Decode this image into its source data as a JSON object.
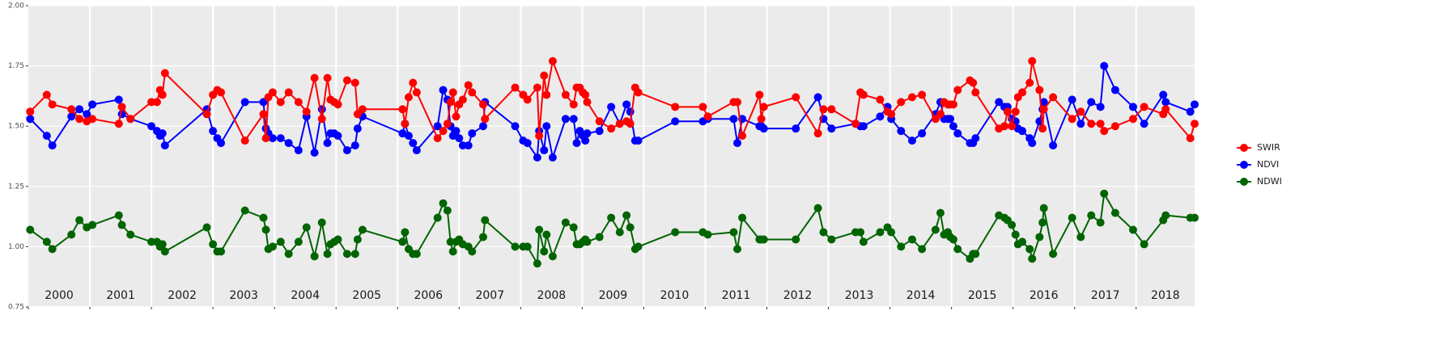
{
  "chart_data": {
    "type": "line",
    "x": [
      2000.03,
      2000.3,
      2000.39,
      2000.7,
      2000.83,
      2000.95,
      2001.04,
      2001.47,
      2001.52,
      2001.66,
      2002.0,
      2002.09,
      2002.14,
      2002.18,
      2002.22,
      2002.9,
      2003.0,
      2003.07,
      2003.13,
      2003.52,
      2003.82,
      2003.86,
      2003.9,
      2003.97,
      2004.1,
      2004.23,
      2004.39,
      2004.52,
      2004.65,
      2004.77,
      2004.86,
      2004.91,
      2004.97,
      2005.03,
      2005.18,
      2005.31,
      2005.35,
      2005.43,
      2006.08,
      2006.12,
      2006.18,
      2006.25,
      2006.31,
      2006.65,
      2006.74,
      2006.81,
      2006.86,
      2006.9,
      2006.95,
      2007.0,
      2007.06,
      2007.15,
      2007.21,
      2007.39,
      2007.42,
      2007.91,
      2008.04,
      2008.11,
      2008.27,
      2008.3,
      2008.38,
      2008.42,
      2008.52,
      2008.73,
      2008.86,
      2008.91,
      2008.96,
      2009.01,
      2009.05,
      2009.08,
      2009.28,
      2009.47,
      2009.61,
      2009.72,
      2009.78,
      2009.86,
      2009.91,
      2010.51,
      2010.96,
      2011.04,
      2011.46,
      2011.52,
      2011.6,
      2011.88,
      2011.91,
      2011.95,
      2012.47,
      2012.83,
      2012.92,
      2013.05,
      2013.44,
      2013.52,
      2013.57,
      2013.84,
      2013.96,
      2014.02,
      2014.18,
      2014.36,
      2014.52,
      2014.74,
      2014.82,
      2014.88,
      2014.94,
      2014.98,
      2015.03,
      2015.1,
      2015.3,
      2015.35,
      2015.39,
      2015.77,
      2015.86,
      2015.91,
      2015.98,
      2016.04,
      2016.08,
      2016.15,
      2016.27,
      2016.31,
      2016.43,
      2016.48,
      2016.5,
      2016.65,
      2016.96,
      2017.1,
      2017.27,
      2017.42,
      2017.48,
      2017.66,
      2017.95,
      2018.13,
      2018.44,
      2018.48,
      2018.88,
      2018.95
    ],
    "series": [
      {
        "name": "SWIR",
        "color": "#ff0000",
        "values": [
          1.56,
          1.63,
          1.59,
          1.57,
          1.53,
          1.52,
          1.53,
          1.51,
          1.58,
          1.53,
          1.6,
          1.6,
          1.65,
          1.63,
          1.72,
          1.55,
          1.63,
          1.65,
          1.64,
          1.44,
          1.55,
          1.45,
          1.62,
          1.64,
          1.6,
          1.64,
          1.6,
          1.56,
          1.7,
          1.53,
          1.7,
          1.61,
          1.6,
          1.59,
          1.69,
          1.68,
          1.55,
          1.57,
          1.57,
          1.51,
          1.62,
          1.68,
          1.64,
          1.45,
          1.48,
          1.51,
          1.6,
          1.64,
          1.54,
          1.59,
          1.61,
          1.67,
          1.64,
          1.59,
          1.53,
          1.66,
          1.63,
          1.61,
          1.66,
          1.46,
          1.71,
          1.63,
          1.77,
          1.63,
          1.59,
          1.66,
          1.66,
          1.64,
          1.63,
          1.6,
          1.52,
          1.49,
          1.51,
          1.52,
          1.51,
          1.66,
          1.64,
          1.58,
          1.58,
          1.54,
          1.6,
          1.6,
          1.46,
          1.63,
          1.53,
          1.58,
          1.62,
          1.47,
          1.57,
          1.57,
          1.51,
          1.64,
          1.63,
          1.61,
          1.56,
          1.55,
          1.6,
          1.62,
          1.63,
          1.53,
          1.55,
          1.6,
          1.59,
          1.59,
          1.59,
          1.65,
          1.69,
          1.68,
          1.64,
          1.49,
          1.5,
          1.56,
          1.5,
          1.56,
          1.62,
          1.64,
          1.68,
          1.77,
          1.65,
          1.49,
          1.57,
          1.62,
          1.53,
          1.56,
          1.51,
          1.51,
          1.48,
          1.5,
          1.53,
          1.58,
          1.55,
          1.57,
          1.45,
          1.51
        ]
      },
      {
        "name": "NDVI",
        "color": "#0000ff",
        "values": [
          1.53,
          1.46,
          1.42,
          1.54,
          1.57,
          1.55,
          1.59,
          1.61,
          1.55,
          1.53,
          1.5,
          1.48,
          1.46,
          1.47,
          1.42,
          1.57,
          1.48,
          1.45,
          1.43,
          1.6,
          1.6,
          1.49,
          1.47,
          1.45,
          1.45,
          1.43,
          1.4,
          1.54,
          1.39,
          1.57,
          1.43,
          1.47,
          1.47,
          1.46,
          1.4,
          1.42,
          1.49,
          1.54,
          1.47,
          1.51,
          1.46,
          1.43,
          1.4,
          1.5,
          1.65,
          1.61,
          1.5,
          1.46,
          1.48,
          1.45,
          1.42,
          1.42,
          1.47,
          1.5,
          1.6,
          1.5,
          1.44,
          1.43,
          1.37,
          1.48,
          1.4,
          1.5,
          1.37,
          1.53,
          1.53,
          1.43,
          1.48,
          1.46,
          1.44,
          1.47,
          1.48,
          1.58,
          1.51,
          1.59,
          1.56,
          1.44,
          1.44,
          1.52,
          1.52,
          1.53,
          1.53,
          1.43,
          1.53,
          1.5,
          1.5,
          1.49,
          1.49,
          1.62,
          1.53,
          1.49,
          1.51,
          1.5,
          1.5,
          1.54,
          1.58,
          1.53,
          1.48,
          1.44,
          1.47,
          1.55,
          1.6,
          1.53,
          1.53,
          1.53,
          1.5,
          1.47,
          1.43,
          1.43,
          1.45,
          1.6,
          1.58,
          1.58,
          1.53,
          1.52,
          1.49,
          1.48,
          1.45,
          1.43,
          1.52,
          1.57,
          1.6,
          1.42,
          1.61,
          1.51,
          1.6,
          1.58,
          1.75,
          1.65,
          1.58,
          1.51,
          1.63,
          1.6,
          1.56,
          1.59
        ]
      },
      {
        "name": "NDWI",
        "color": "#006400",
        "values": [
          1.07,
          1.02,
          0.99,
          1.05,
          1.11,
          1.08,
          1.09,
          1.13,
          1.09,
          1.05,
          1.02,
          1.02,
          1.0,
          1.01,
          0.98,
          1.08,
          1.01,
          0.98,
          0.98,
          1.15,
          1.12,
          1.07,
          0.99,
          1.0,
          1.02,
          0.97,
          1.02,
          1.08,
          0.96,
          1.1,
          0.97,
          1.01,
          1.02,
          1.03,
          0.97,
          0.97,
          1.03,
          1.07,
          1.02,
          1.06,
          0.99,
          0.97,
          0.97,
          1.12,
          1.18,
          1.15,
          1.02,
          0.98,
          1.02,
          1.03,
          1.01,
          1.0,
          0.98,
          1.04,
          1.11,
          1.0,
          1.0,
          1.0,
          0.93,
          1.07,
          0.98,
          1.05,
          0.96,
          1.1,
          1.08,
          1.01,
          1.01,
          1.02,
          1.03,
          1.02,
          1.04,
          1.12,
          1.06,
          1.13,
          1.08,
          0.99,
          1.0,
          1.06,
          1.06,
          1.05,
          1.06,
          0.99,
          1.12,
          1.03,
          1.03,
          1.03,
          1.03,
          1.16,
          1.06,
          1.03,
          1.06,
          1.06,
          1.02,
          1.06,
          1.08,
          1.06,
          1.0,
          1.03,
          0.99,
          1.07,
          1.14,
          1.05,
          1.06,
          1.04,
          1.03,
          0.99,
          0.95,
          0.97,
          0.97,
          1.13,
          1.12,
          1.11,
          1.09,
          1.05,
          1.01,
          1.02,
          0.99,
          0.95,
          1.04,
          1.1,
          1.16,
          0.97,
          1.12,
          1.04,
          1.13,
          1.1,
          1.22,
          1.14,
          1.07,
          1.01,
          1.11,
          1.13,
          1.12,
          1.12
        ]
      }
    ],
    "xlim": [
      2000,
      2018.95
    ],
    "xticks": [
      2000,
      2001,
      2002,
      2003,
      2004,
      2005,
      2006,
      2007,
      2008,
      2009,
      2010,
      2011,
      2012,
      2013,
      2014,
      2015,
      2016,
      2017,
      2018
    ],
    "ylim": [
      0.75,
      2.0
    ],
    "yticks": [
      {
        "value": 0.75,
        "label": "0.75"
      },
      {
        "value": 1.0,
        "label": "1.00"
      },
      {
        "value": 1.25,
        "label": "1.25"
      },
      {
        "value": 1.5,
        "label": "1.50"
      },
      {
        "value": 1.75,
        "label": "1.75"
      },
      {
        "value": 2.0,
        "label": "2.00"
      }
    ],
    "grid": true,
    "legend": "right"
  }
}
